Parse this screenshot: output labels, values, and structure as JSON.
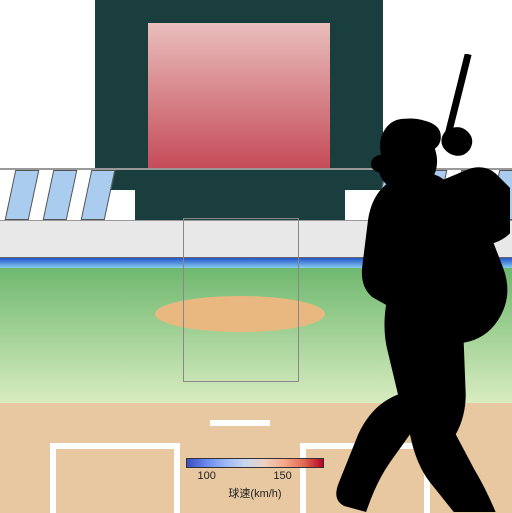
{
  "scene": {
    "scoreboard_color": "#1a3d3d",
    "screen_gradient_top": "#e9bebc",
    "screen_gradient_bottom": "#c54b58",
    "window_color": "#aaccee",
    "wall_color": "#e8e8e8",
    "stripe_gradient_top": "#2255cc",
    "stripe_gradient_bottom": "#88ccee",
    "field_gradient_top": "#6fb86f",
    "field_gradient_bottom": "#d8ecc0",
    "mound_color": "#e8b880",
    "dirt_color": "#e8c8a0",
    "batter_color": "#000000"
  },
  "legend": {
    "title": "球速(km/h)",
    "ticks": [
      {
        "label": "100",
        "pos_pct": 15
      },
      {
        "label": "150",
        "pos_pct": 70
      }
    ],
    "gradient_stops": [
      "#3b4cc0",
      "#6a89ee",
      "#9db8f5",
      "#c9d7f0",
      "#edd1c2",
      "#f7a889",
      "#e26952",
      "#b40426"
    ]
  }
}
